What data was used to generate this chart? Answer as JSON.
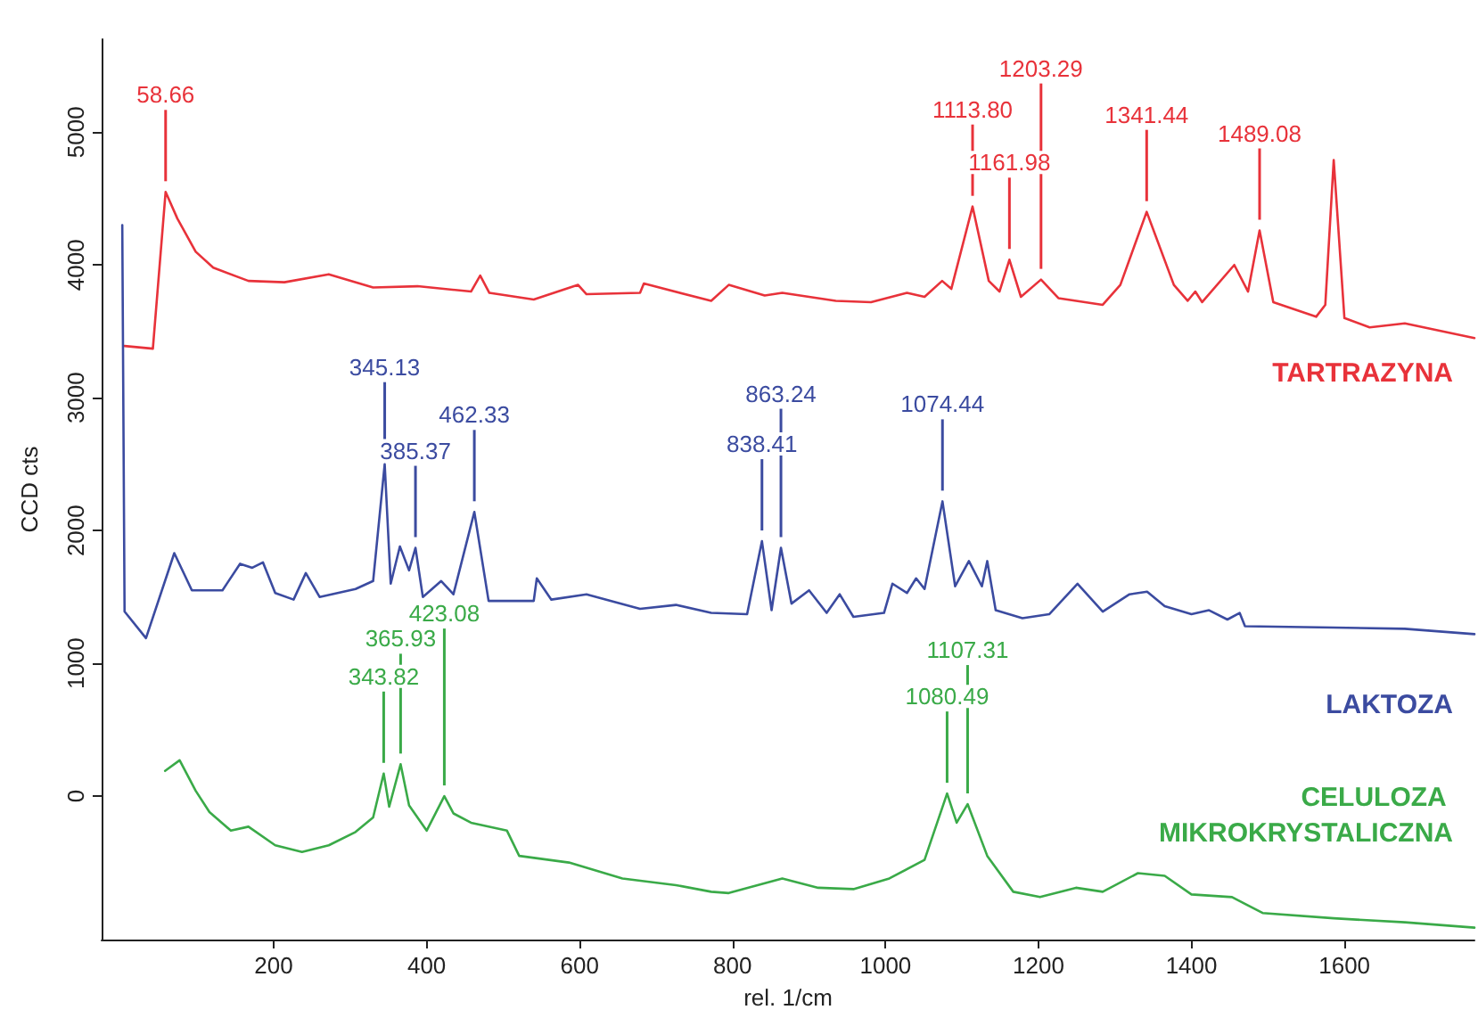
{
  "chart_data": {
    "type": "line",
    "xlabel": "rel. 1/cm",
    "ylabel": "CCD cts",
    "xlim": [
      -25,
      1770
    ],
    "ylim": [
      -1080,
      5700
    ],
    "xticks": [
      200,
      400,
      600,
      800,
      1000,
      1200,
      1400,
      1600
    ],
    "yticks": [
      0,
      1000,
      2000,
      3000,
      4000,
      5000
    ],
    "grid": false,
    "series": [
      {
        "name": "TARTRAZYNA",
        "color": "#e8323a",
        "x": [
          5,
          42,
          58.66,
          74,
          98,
          121,
          167,
          214,
          272,
          330,
          388,
          458,
          470,
          482,
          540,
          598,
          609,
          679,
          684,
          772,
          795,
          842,
          865,
          935,
          981,
          1028,
          1051,
          1074,
          1086,
          1113.8,
          1135,
          1149,
          1161.98,
          1177,
          1203.29,
          1226,
          1284,
          1307,
          1341.44,
          1377,
          1395,
          1405,
          1414,
          1456,
          1474,
          1489.08,
          1507,
          1563,
          1575,
          1586,
          1600,
          1633,
          1679,
          1770
        ],
        "values": [
          3390,
          3370,
          4550,
          4350,
          4100,
          3980,
          3880,
          3870,
          3930,
          3830,
          3840,
          3800,
          3920,
          3790,
          3740,
          3850,
          3780,
          3790,
          3860,
          3730,
          3850,
          3770,
          3790,
          3730,
          3720,
          3790,
          3760,
          3880,
          3820,
          4440,
          3880,
          3800,
          4040,
          3760,
          3890,
          3750,
          3700,
          3850,
          4400,
          3850,
          3730,
          3800,
          3720,
          4000,
          3800,
          4260,
          3720,
          3610,
          3700,
          4790,
          3600,
          3530,
          3560,
          3450
        ]
      },
      {
        "name": "LAKTOZA",
        "color": "#3b4ba0",
        "x": [
          2,
          5,
          33,
          70,
          93,
          133,
          156,
          172,
          186,
          202,
          226,
          242,
          260,
          307,
          330,
          345.13,
          353,
          365,
          377,
          385.37,
          395,
          419,
          435,
          462.33,
          481,
          540,
          544,
          563,
          609,
          679,
          726,
          772,
          819,
          838.41,
          851,
          863.24,
          877,
          900,
          923,
          940,
          958,
          998,
          1009,
          1028,
          1040,
          1051,
          1074.44,
          1091,
          1109,
          1126,
          1133,
          1144,
          1179,
          1214,
          1251,
          1284,
          1319,
          1342,
          1365,
          1400,
          1423,
          1447,
          1463,
          1470,
          1586,
          1679,
          1770
        ],
        "values": [
          4300,
          1390,
          1190,
          1830,
          1550,
          1550,
          1750,
          1720,
          1760,
          1530,
          1480,
          1680,
          1500,
          1560,
          1620,
          2500,
          1600,
          1880,
          1700,
          1870,
          1500,
          1620,
          1520,
          2140,
          1470,
          1470,
          1640,
          1480,
          1520,
          1410,
          1440,
          1380,
          1370,
          1920,
          1400,
          1870,
          1450,
          1550,
          1380,
          1520,
          1350,
          1380,
          1600,
          1530,
          1640,
          1560,
          2220,
          1580,
          1770,
          1580,
          1770,
          1400,
          1340,
          1370,
          1600,
          1390,
          1520,
          1540,
          1430,
          1370,
          1400,
          1330,
          1380,
          1280,
          1270,
          1260,
          1220
        ]
      },
      {
        "name": "CELULOZA MIKROKRYSTALICZNA",
        "color": "#3aaa48",
        "x": [
          58,
          77,
          98,
          116,
          144,
          167,
          202,
          237,
          272,
          307,
          330,
          343.82,
          351,
          365.93,
          377,
          400,
          423.08,
          435,
          458,
          505,
          521,
          586,
          656,
          726,
          772,
          795,
          865,
          912,
          958,
          1005,
          1051,
          1080.49,
          1093,
          1107.31,
          1133,
          1167,
          1202,
          1249,
          1284,
          1330,
          1365,
          1400,
          1453,
          1493,
          1586,
          1679,
          1770
        ],
        "values": [
          190,
          270,
          40,
          -120,
          -260,
          -230,
          -370,
          -420,
          -370,
          -270,
          -160,
          170,
          -80,
          240,
          -70,
          -260,
          0,
          -130,
          -200,
          -260,
          -450,
          -500,
          -620,
          -670,
          -720,
          -730,
          -620,
          -690,
          -700,
          -620,
          -480,
          20,
          -200,
          -60,
          -450,
          -720,
          -760,
          -690,
          -720,
          -580,
          -600,
          -740,
          -760,
          -880,
          -920,
          -950,
          -990
        ]
      }
    ],
    "annotations": [
      {
        "text": "58.66",
        "x": 58.66,
        "y": 4550
      },
      {
        "text": "1113.80",
        "x": 1113.8,
        "y": 4440
      },
      {
        "text": "1161.98",
        "x": 1161.98,
        "y": 4040
      },
      {
        "text": "1203.29",
        "x": 1203.29,
        "y": 3890
      },
      {
        "text": "1341.44",
        "x": 1341.44,
        "y": 4400
      },
      {
        "text": "1489.08",
        "x": 1489.08,
        "y": 4260
      },
      {
        "text": "345.13",
        "x": 345.13,
        "y": 2500
      },
      {
        "text": "385.37",
        "x": 385.37,
        "y": 1870
      },
      {
        "text": "462.33",
        "x": 462.33,
        "y": 2140
      },
      {
        "text": "838.41",
        "x": 838.41,
        "y": 1920
      },
      {
        "text": "863.24",
        "x": 863.24,
        "y": 1870
      },
      {
        "text": "1074.44",
        "x": 1074.44,
        "y": 2220
      },
      {
        "text": "343.82",
        "x": 343.82,
        "y": 170
      },
      {
        "text": "365.93",
        "x": 365.93,
        "y": 240
      },
      {
        "text": "423.08",
        "x": 423.08,
        "y": 0
      },
      {
        "text": "1080.49",
        "x": 1080.49,
        "y": 20
      },
      {
        "text": "1107.31",
        "x": 1107.31,
        "y": -60
      }
    ]
  }
}
